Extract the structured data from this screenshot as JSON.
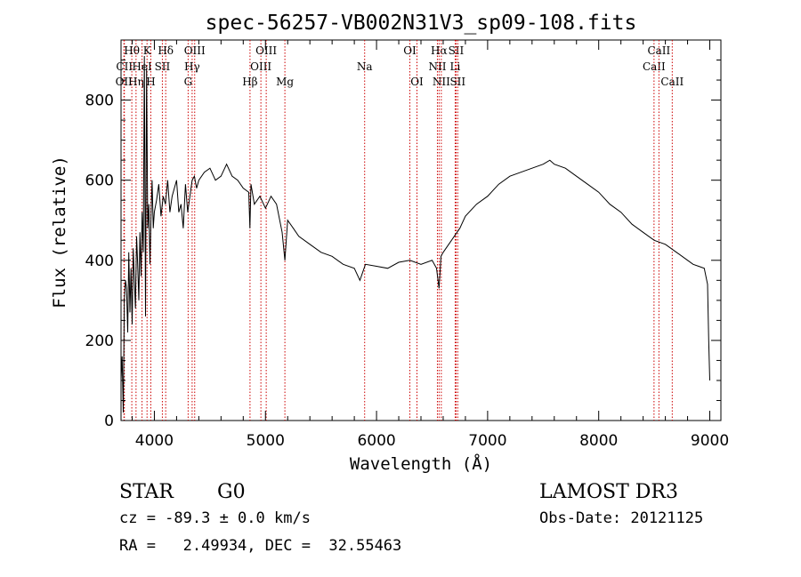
{
  "chart_data": {
    "type": "line",
    "title": "spec-56257-VB002N31V3_sp09-108.fits",
    "xlabel": "Wavelength (Å)",
    "ylabel": "Flux (relative)",
    "xlim": [
      3700,
      9100
    ],
    "ylim": [
      0,
      950
    ],
    "xticks": [
      4000,
      5000,
      6000,
      7000,
      8000,
      9000
    ],
    "yticks": [
      0,
      200,
      400,
      600,
      800
    ],
    "grid": false,
    "series": [
      {
        "name": "Flux",
        "color": "#000000",
        "x": [
          3700,
          3710,
          3720,
          3730,
          3740,
          3750,
          3760,
          3770,
          3780,
          3790,
          3800,
          3810,
          3820,
          3830,
          3840,
          3850,
          3860,
          3870,
          3880,
          3890,
          3900,
          3910,
          3920,
          3930,
          3940,
          3950,
          3960,
          3970,
          3980,
          3990,
          4000,
          4020,
          4040,
          4060,
          4080,
          4100,
          4120,
          4140,
          4160,
          4180,
          4200,
          4220,
          4240,
          4260,
          4280,
          4300,
          4320,
          4340,
          4360,
          4380,
          4400,
          4450,
          4500,
          4550,
          4600,
          4650,
          4700,
          4750,
          4800,
          4850,
          4860,
          4870,
          4900,
          4950,
          5000,
          5050,
          5100,
          5150,
          5175,
          5200,
          5250,
          5300,
          5400,
          5500,
          5600,
          5700,
          5800,
          5850,
          5900,
          6000,
          6100,
          6200,
          6300,
          6400,
          6500,
          6540,
          6563,
          6580,
          6600,
          6650,
          6700,
          6750,
          6800,
          6900,
          7000,
          7100,
          7200,
          7300,
          7400,
          7500,
          7560,
          7600,
          7700,
          7800,
          7900,
          8000,
          8100,
          8200,
          8300,
          8400,
          8500,
          8600,
          8700,
          8800,
          8850,
          8900,
          8950,
          8980,
          8990,
          9000
        ],
        "values": [
          100,
          160,
          20,
          300,
          350,
          330,
          220,
          420,
          270,
          380,
          240,
          430,
          350,
          280,
          460,
          390,
          300,
          470,
          360,
          520,
          420,
          910,
          260,
          880,
          480,
          540,
          390,
          510,
          600,
          480,
          520,
          550,
          590,
          510,
          560,
          540,
          600,
          520,
          560,
          580,
          600,
          520,
          540,
          480,
          590,
          520,
          560,
          600,
          610,
          580,
          600,
          620,
          630,
          600,
          610,
          640,
          610,
          600,
          580,
          570,
          480,
          590,
          540,
          560,
          530,
          560,
          540,
          470,
          400,
          500,
          480,
          460,
          440,
          420,
          410,
          390,
          380,
          350,
          390,
          385,
          380,
          395,
          400,
          390,
          400,
          380,
          330,
          410,
          420,
          440,
          460,
          480,
          510,
          540,
          560,
          590,
          610,
          620,
          630,
          640,
          650,
          640,
          630,
          610,
          590,
          570,
          540,
          520,
          490,
          470,
          450,
          440,
          420,
          400,
          390,
          385,
          380,
          340,
          200,
          100
        ]
      }
    ],
    "line_annotations": [
      {
        "wavelength": 3726,
        "label": "OII",
        "row": 2
      },
      {
        "wavelength": 3730,
        "label": "CII",
        "row": 1
      },
      {
        "wavelength": 3797,
        "label": "Hθ",
        "row": 0
      },
      {
        "wavelength": 3835,
        "label": "Hη",
        "row": 2
      },
      {
        "wavelength": 3889,
        "label": "HeI",
        "row": 1
      },
      {
        "wavelength": 3934,
        "label": "K",
        "row": 0
      },
      {
        "wavelength": 3968,
        "label": "H",
        "row": 2
      },
      {
        "wavelength": 4072,
        "label": "SII",
        "row": 1
      },
      {
        "wavelength": 4102,
        "label": "Hδ",
        "row": 0
      },
      {
        "wavelength": 4304,
        "label": "G",
        "row": 2
      },
      {
        "wavelength": 4340,
        "label": "Hγ",
        "row": 1
      },
      {
        "wavelength": 4363,
        "label": "OIII",
        "row": 0
      },
      {
        "wavelength": 4861,
        "label": "Hβ",
        "row": 2
      },
      {
        "wavelength": 4959,
        "label": "OIII",
        "row": 1
      },
      {
        "wavelength": 5007,
        "label": "OIII",
        "row": 0
      },
      {
        "wavelength": 5175,
        "label": "Mg",
        "row": 2
      },
      {
        "wavelength": 5893,
        "label": "Na",
        "row": 1
      },
      {
        "wavelength": 6300,
        "label": "OI",
        "row": 0
      },
      {
        "wavelength": 6364,
        "label": "OI",
        "row": 2
      },
      {
        "wavelength": 6548,
        "label": "NII",
        "row": 1
      },
      {
        "wavelength": 6563,
        "label": "Hα",
        "row": 0
      },
      {
        "wavelength": 6583,
        "label": "NII",
        "row": 2
      },
      {
        "wavelength": 6708,
        "label": "Li",
        "row": 1
      },
      {
        "wavelength": 6716,
        "label": "SII",
        "row": 0
      },
      {
        "wavelength": 6731,
        "label": "SII",
        "row": 2
      },
      {
        "wavelength": 8498,
        "label": "CaII",
        "row": 1
      },
      {
        "wavelength": 8542,
        "label": "CaII",
        "row": 0
      },
      {
        "wavelength": 8662,
        "label": "CaII",
        "row": 2
      }
    ],
    "annotation_color": "#cc0000"
  },
  "info": {
    "class_label": "STAR",
    "subclass": "G0",
    "survey": "LAMOST DR3",
    "cz": "cz = -89.3 ± 0.0 km/s",
    "obs_date": "Obs-Date: 20121125",
    "coords": "RA =   2.49934, DEC =  32.55463"
  }
}
